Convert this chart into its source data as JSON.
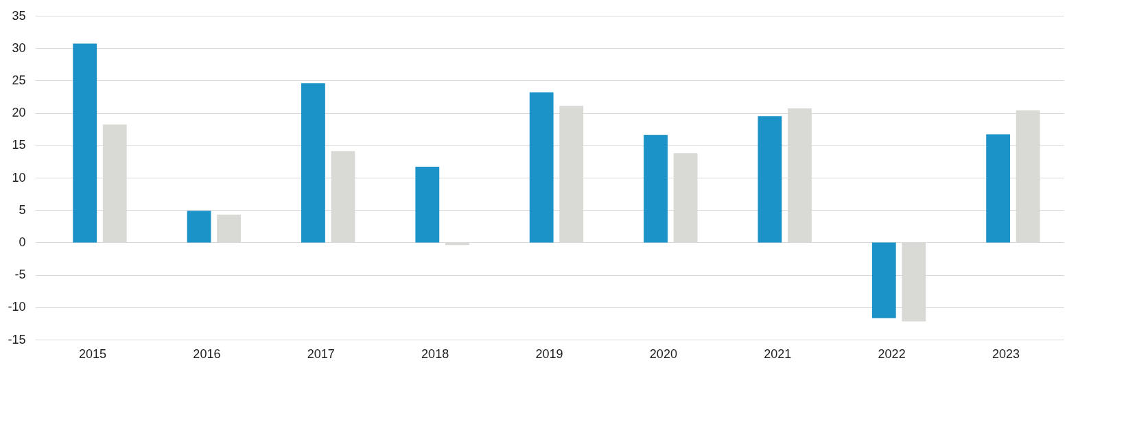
{
  "chart_data": {
    "type": "bar",
    "categories": [
      "2015",
      "2016",
      "2017",
      "2018",
      "2019",
      "2020",
      "2021",
      "2022",
      "2023"
    ],
    "series": [
      {
        "color": "#1b93c8",
        "values": [
          30.7,
          4.9,
          24.6,
          11.7,
          23.2,
          16.6,
          19.5,
          -11.7,
          16.7
        ]
      },
      {
        "color": "#d9dad6",
        "values": [
          18.2,
          4.3,
          14.1,
          -0.4,
          21.1,
          13.8,
          20.7,
          -12.2,
          20.4
        ]
      }
    ],
    "ylim": [
      -15,
      35
    ],
    "yticks": [
      -15,
      -10,
      -5,
      0,
      5,
      10,
      15,
      20,
      25,
      30,
      35
    ],
    "grid": "y",
    "legend": false
  }
}
